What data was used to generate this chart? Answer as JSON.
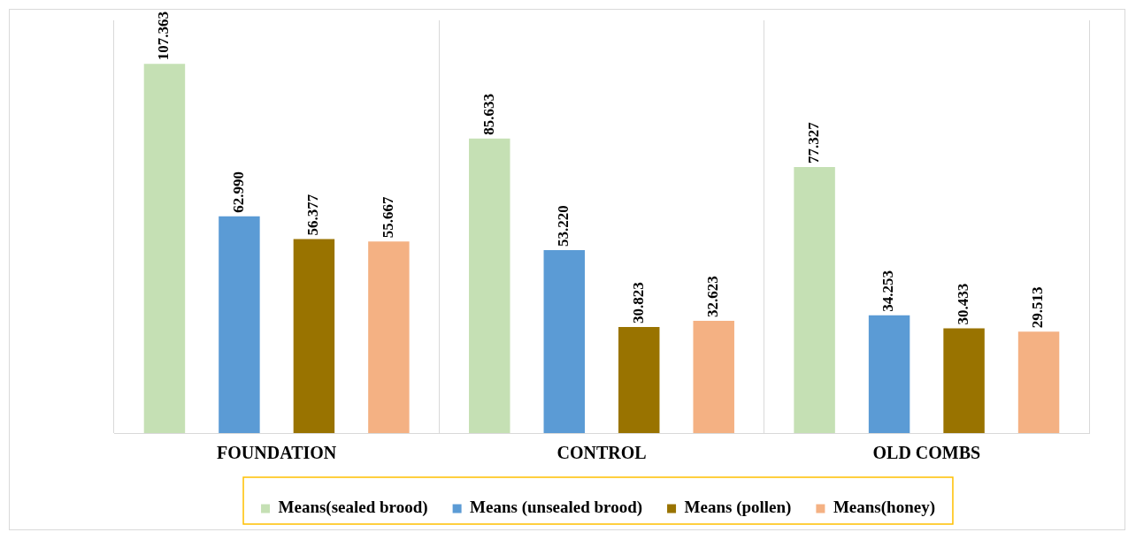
{
  "chart_data": {
    "type": "bar",
    "categories": [
      "FOUNDATION",
      "CONTROL",
      "OLD COMBS"
    ],
    "series": [
      {
        "name": "Means(sealed brood)",
        "color": "#c5e0b4",
        "values": [
          107.363,
          85.633,
          77.327
        ],
        "value_labels": [
          "107.363",
          "85.633",
          "77.327"
        ]
      },
      {
        "name": "Means (unsealed brood)",
        "color": "#5b9bd5",
        "values": [
          62.99,
          53.22,
          34.253
        ],
        "value_labels": [
          "62.990",
          "53.220",
          "34.253"
        ]
      },
      {
        "name": "Means (pollen)",
        "color": "#997300",
        "values": [
          56.377,
          30.823,
          30.433
        ],
        "value_labels": [
          "56.377",
          "30.823",
          "30.433"
        ]
      },
      {
        "name": "Means(honey)",
        "color": "#f4b183",
        "values": [
          55.667,
          32.623,
          29.513
        ],
        "value_labels": [
          "55.667",
          "32.623",
          "29.513"
        ]
      }
    ],
    "relative": false,
    "grid": "x",
    "legend": "bottom"
  }
}
